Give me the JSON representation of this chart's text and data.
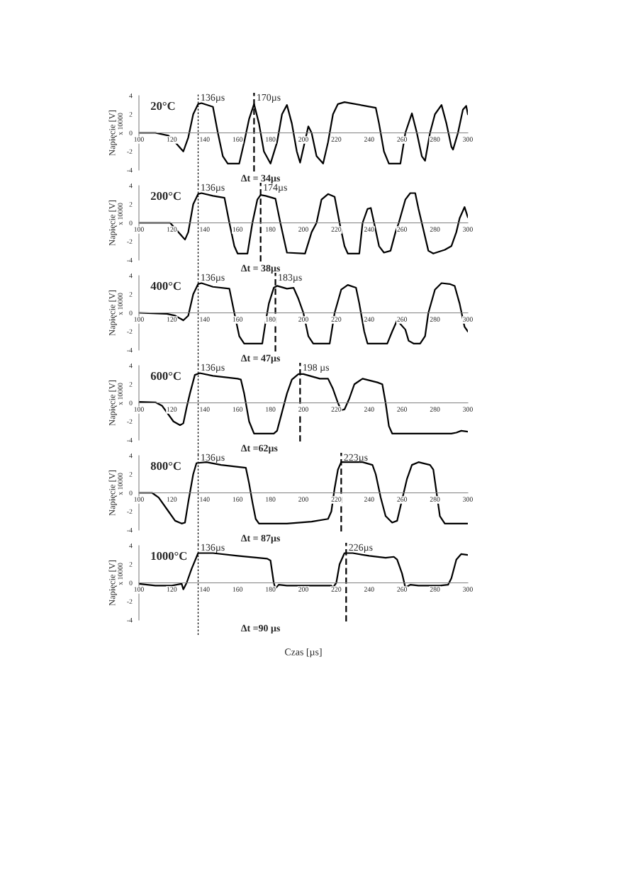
{
  "chart_data": [
    {
      "type": "line",
      "title": "20°C",
      "ylabel": "Napięcie [V]",
      "annotations": [
        "x 10000",
        "Δt = 34µs"
      ],
      "xlim": [
        100,
        300
      ],
      "xticks": [
        100,
        120,
        140,
        160,
        180,
        200,
        220,
        240,
        260,
        280,
        300
      ],
      "ylim": [
        -4,
        4
      ],
      "yticks": [
        -4,
        -2,
        0,
        2,
        4
      ],
      "grid": false,
      "legend": false,
      "ref_lines": [
        {
          "axis": "x",
          "value": 136,
          "label": "136µs",
          "line_style": "dotted"
        },
        {
          "axis": "x",
          "value": 170,
          "label": "170µs",
          "line_style": "dashed"
        }
      ],
      "series": [
        {
          "color": "#000000",
          "x": [
            100,
            110,
            118,
            123,
            127,
            130,
            133,
            136,
            138,
            145,
            148,
            151,
            154,
            161,
            164,
            167,
            170,
            173,
            176,
            180,
            184,
            187,
            190,
            193,
            196,
            198,
            203,
            205,
            208,
            212,
            215,
            218,
            221,
            225,
            244,
            246,
            249,
            252,
            259,
            262,
            266,
            269,
            272,
            274,
            277,
            280,
            284,
            287,
            290,
            291,
            294,
            297,
            299,
            300
          ],
          "values": [
            0,
            0,
            -0.3,
            -1.2,
            -2,
            -0.5,
            2,
            3.1,
            3.2,
            2.8,
            0,
            -2.5,
            -3.3,
            -3.3,
            -1,
            1.5,
            3.1,
            1,
            -2,
            -3.3,
            -1,
            2,
            3,
            1,
            -2,
            -3.2,
            0.7,
            0,
            -2.5,
            -3.3,
            -1,
            2,
            3.1,
            3.3,
            2.7,
            1,
            -2,
            -3.3,
            -3.3,
            0,
            2.1,
            0,
            -2.5,
            -3,
            0,
            2,
            3,
            1,
            -1.5,
            -1.8,
            0,
            2.5,
            2.9,
            2
          ]
        }
      ]
    },
    {
      "type": "line",
      "title": "200°C",
      "ylabel": "Napięcie [V]",
      "annotations": [
        "x 10000",
        "Δt = 38µs"
      ],
      "xlim": [
        100,
        300
      ],
      "xticks": [
        100,
        120,
        140,
        160,
        180,
        200,
        220,
        240,
        260,
        280,
        300
      ],
      "ylim": [
        -4,
        4
      ],
      "yticks": [
        -4,
        -2,
        0,
        2,
        4
      ],
      "grid": false,
      "legend": false,
      "ref_lines": [
        {
          "axis": "x",
          "value": 136,
          "label": "136µs",
          "line_style": "dotted"
        },
        {
          "axis": "x",
          "value": 174,
          "label": "174µs",
          "line_style": "dashed"
        }
      ],
      "series": [
        {
          "color": "#000000",
          "x": [
            100,
            119,
            123,
            128,
            130,
            133,
            136,
            138,
            145,
            152,
            155,
            158,
            160,
            166,
            169,
            172,
            174,
            177,
            183,
            186,
            190,
            201,
            205,
            208,
            211,
            215,
            219,
            222,
            225,
            227,
            234,
            236,
            239,
            241,
            243,
            246,
            249,
            253,
            256,
            258,
            262,
            265,
            268,
            270,
            272,
            276,
            279,
            286,
            290,
            293,
            295,
            298,
            300
          ],
          "values": [
            0,
            0,
            -0.8,
            -1.8,
            -1,
            2,
            3.1,
            3.2,
            2.9,
            2.7,
            0,
            -2.5,
            -3.3,
            -3.3,
            0,
            2.5,
            3,
            2.9,
            2.6,
            0,
            -3.2,
            -3.3,
            -1,
            0,
            2.5,
            3.1,
            2.8,
            0,
            -2.5,
            -3.3,
            -3.3,
            0,
            1.5,
            1.6,
            0,
            -2.5,
            -3.2,
            -3,
            -1,
            0,
            2.5,
            3.2,
            3.2,
            1.5,
            0,
            -3,
            -3.3,
            -2.9,
            -2.5,
            -1,
            0.5,
            1.7,
            0.6
          ]
        }
      ]
    },
    {
      "type": "line",
      "title": "400°C",
      "ylabel": "Napięcie [V]",
      "annotations": [
        "x 10000",
        "Δt = 47µs"
      ],
      "xlim": [
        100,
        300
      ],
      "xticks": [
        100,
        120,
        140,
        160,
        180,
        200,
        220,
        240,
        260,
        280,
        300
      ],
      "ylim": [
        -4,
        4
      ],
      "yticks": [
        -4,
        -2,
        0,
        2,
        4
      ],
      "grid": false,
      "legend": false,
      "ref_lines": [
        {
          "axis": "x",
          "value": 136,
          "label": "136µs",
          "line_style": "dotted"
        },
        {
          "axis": "x",
          "value": 183,
          "label": "183µs",
          "line_style": "dashed"
        }
      ],
      "series": [
        {
          "color": "#000000",
          "x": [
            100,
            117,
            122,
            127,
            130,
            133,
            136,
            138,
            145,
            155,
            158,
            161,
            164,
            175,
            177,
            179,
            182,
            184,
            190,
            194,
            197,
            200,
            203,
            206,
            216,
            219,
            223,
            227,
            232,
            234,
            237,
            239,
            251,
            254,
            257,
            262,
            264,
            267,
            271,
            274,
            276,
            280,
            284,
            289,
            292,
            295,
            298,
            300
          ],
          "values": [
            0,
            -0.1,
            -0.3,
            -0.8,
            -0.3,
            2,
            3.1,
            3.2,
            2.8,
            2.6,
            0,
            -2.5,
            -3.3,
            -3.3,
            -1,
            1,
            2.7,
            2.9,
            2.6,
            2.7,
            1.5,
            0,
            -2.5,
            -3.3,
            -3.3,
            0,
            2.5,
            3,
            2.7,
            1,
            -2,
            -3.3,
            -3.3,
            -2,
            -0.8,
            -1.8,
            -3,
            -3.3,
            -3.3,
            -2.5,
            0,
            2.5,
            3.2,
            3.1,
            2.9,
            1,
            -1.5,
            -2
          ]
        }
      ]
    },
    {
      "type": "line",
      "title": "600°C",
      "ylabel": "Napięcie [V]",
      "annotations": [
        "x 10000",
        "Δt =62µs"
      ],
      "xlim": [
        100,
        300
      ],
      "xticks": [
        100,
        120,
        140,
        160,
        180,
        200,
        220,
        240,
        260,
        280,
        300
      ],
      "ylim": [
        -4,
        4
      ],
      "yticks": [
        -4,
        -2,
        0,
        2,
        4
      ],
      "grid": false,
      "legend": false,
      "ref_lines": [
        {
          "axis": "x",
          "value": 136,
          "label": "136µs",
          "line_style": "dotted"
        },
        {
          "axis": "x",
          "value": 198,
          "label": "198 µs",
          "line_style": "dashed"
        }
      ],
      "series": [
        {
          "color": "#000000",
          "x": [
            100,
            110,
            114,
            121,
            125,
            127,
            129,
            131,
            134,
            137,
            145,
            160,
            162,
            164,
            167,
            170,
            182,
            184,
            187,
            190,
            193,
            197,
            200,
            210,
            215,
            218,
            221,
            223,
            225,
            228,
            231,
            236,
            245,
            248,
            250,
            252,
            254,
            290,
            293,
            296,
            300
          ],
          "values": [
            0.1,
            0.05,
            -0.3,
            -2,
            -2.4,
            -2.2,
            -0.5,
            1,
            3,
            3.2,
            2.9,
            2.6,
            2.5,
            1,
            -2,
            -3.3,
            -3.3,
            -3,
            -1,
            1,
            2.5,
            3.1,
            3.1,
            2.6,
            2.6,
            1.5,
            0,
            -0.8,
            -0.7,
            0.5,
            2,
            2.6,
            2.2,
            2,
            0,
            -2.5,
            -3.3,
            -3.3,
            -3.2,
            -3,
            -3.1
          ]
        }
      ]
    },
    {
      "type": "line",
      "title": "800°C",
      "ylabel": "Napięcie [V]",
      "annotations": [
        "x 10000",
        "Δt = 87µs"
      ],
      "xlim": [
        100,
        300
      ],
      "xticks": [
        100,
        120,
        140,
        160,
        180,
        200,
        220,
        240,
        260,
        280,
        300
      ],
      "ylim": [
        -4,
        4
      ],
      "yticks": [
        -4,
        -2,
        0,
        2,
        4
      ],
      "grid": false,
      "legend": false,
      "ref_lines": [
        {
          "axis": "x",
          "value": 136,
          "label": "136µs",
          "line_style": "dotted"
        },
        {
          "axis": "x",
          "value": 223,
          "label": "223µs",
          "line_style": "dashed"
        }
      ],
      "series": [
        {
          "color": "#000000",
          "x": [
            100,
            108,
            112,
            118,
            122,
            126,
            128,
            130,
            133,
            135,
            141,
            150,
            165,
            167,
            169,
            171,
            173,
            190,
            205,
            215,
            217,
            219,
            221,
            223,
            236,
            242,
            244,
            247,
            250,
            254,
            257,
            263,
            266,
            270,
            277,
            279,
            281,
            283,
            286,
            300
          ],
          "values": [
            0,
            0,
            -0.5,
            -2,
            -3,
            -3.3,
            -3.2,
            -1,
            2,
            3.2,
            3.3,
            3,
            2.7,
            1,
            -1,
            -2.8,
            -3.3,
            -3.3,
            -3.1,
            -2.8,
            -2,
            0.5,
            2.5,
            3.3,
            3.3,
            3,
            2,
            -0.5,
            -2.5,
            -3.2,
            -3,
            1.5,
            3,
            3.3,
            3,
            2.5,
            0,
            -2.5,
            -3.3,
            -3.3
          ]
        }
      ]
    },
    {
      "type": "line",
      "title": "1000°C",
      "ylabel": "Napięcie [V]",
      "xlabel": "Czas [µs]",
      "annotations": [
        "x 10000",
        "Δt =90 µs"
      ],
      "xlim": [
        100,
        300
      ],
      "xticks": [
        100,
        120,
        140,
        160,
        180,
        200,
        220,
        240,
        260,
        280,
        300
      ],
      "ylim": [
        -4,
        4
      ],
      "yticks": [
        -4,
        -2,
        0,
        2,
        4
      ],
      "grid": false,
      "legend": false,
      "ref_lines": [
        {
          "axis": "x",
          "value": 136,
          "label": "136µs",
          "line_style": "dotted"
        },
        {
          "axis": "x",
          "value": 226,
          "label": "226µs",
          "line_style": "dashed"
        }
      ],
      "series": [
        {
          "color": "#000000",
          "x": [
            100,
            110,
            120,
            126,
            127,
            129,
            132,
            136,
            145,
            160,
            178,
            180,
            182,
            183,
            185,
            190,
            217,
            218,
            220,
            222,
            225,
            230,
            240,
            250,
            255,
            257,
            260,
            262,
            263,
            265,
            270,
            283,
            288,
            290,
            293,
            296,
            300
          ],
          "values": [
            -0.1,
            -0.3,
            -0.3,
            -0.1,
            -0.7,
            0,
            1.5,
            3.2,
            3.2,
            2.9,
            2.6,
            2.4,
            0,
            -0.6,
            -0.2,
            -0.3,
            -0.3,
            -0.5,
            0,
            2,
            3.2,
            3.2,
            2.9,
            2.7,
            2.8,
            2.5,
            1,
            -0.5,
            -0.4,
            -0.2,
            -0.3,
            -0.3,
            -0.2,
            0.5,
            2.5,
            3.1,
            3
          ]
        }
      ]
    }
  ]
}
